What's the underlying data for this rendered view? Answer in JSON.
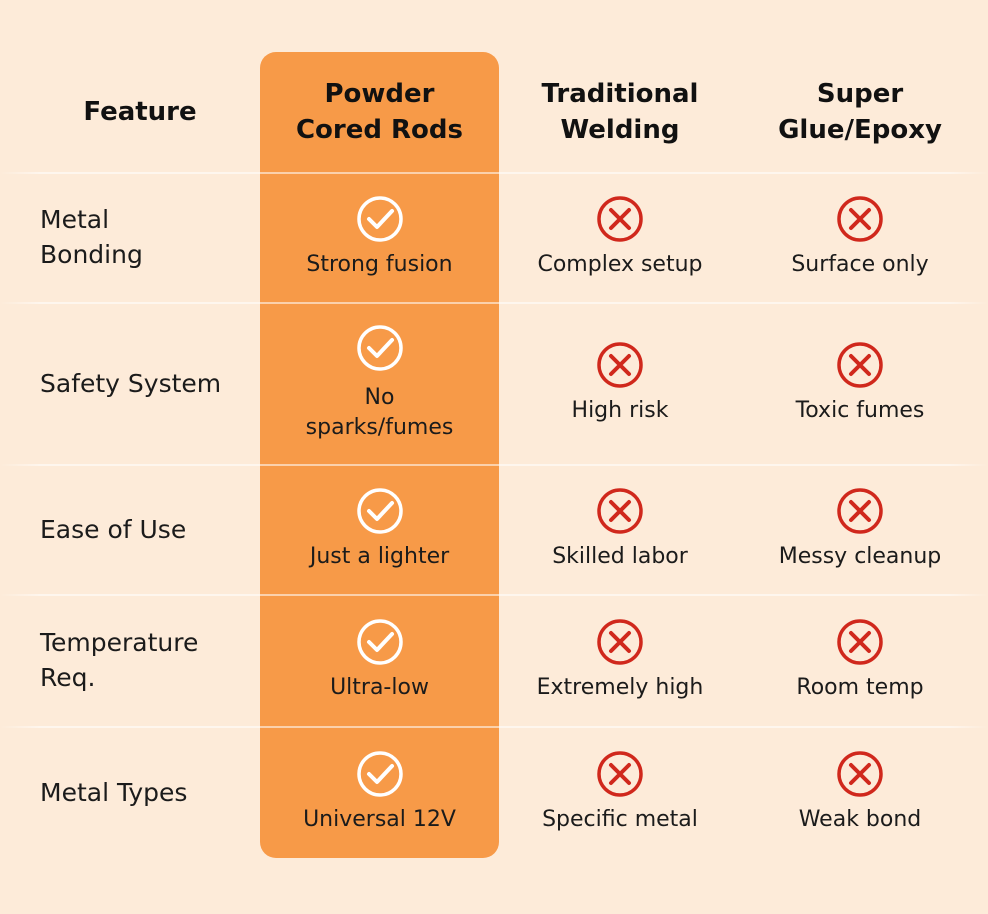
{
  "colors": {
    "background": "#fdebd9",
    "highlight": "#f79a48",
    "check": "#ffffff",
    "cross": "#d0281c"
  },
  "header": {
    "feature": "Feature",
    "col1": [
      "Powder",
      "Cored Rods"
    ],
    "col2": [
      "Traditional",
      "Welding"
    ],
    "col3": [
      "Super",
      "Glue/Epoxy"
    ]
  },
  "rows": [
    {
      "feature": [
        "Metal",
        "Bonding"
      ],
      "col1": {
        "icon": "check-circle-icon",
        "text": [
          "Strong fusion"
        ]
      },
      "col2": {
        "icon": "x-circle-icon",
        "text": [
          "Complex setup"
        ]
      },
      "col3": {
        "icon": "x-circle-icon",
        "text": [
          "Surface only"
        ]
      }
    },
    {
      "feature": [
        "Safety System"
      ],
      "col1": {
        "icon": "check-circle-icon",
        "text": [
          "No",
          "sparks/fumes"
        ]
      },
      "col2": {
        "icon": "x-circle-icon",
        "text": [
          "High risk"
        ]
      },
      "col3": {
        "icon": "x-circle-icon",
        "text": [
          "Toxic fumes"
        ]
      }
    },
    {
      "feature": [
        "Ease of Use"
      ],
      "col1": {
        "icon": "check-circle-icon",
        "text": [
          "Just a lighter"
        ]
      },
      "col2": {
        "icon": "x-circle-icon",
        "text": [
          "Skilled labor"
        ]
      },
      "col3": {
        "icon": "x-circle-icon",
        "text": [
          "Messy cleanup"
        ]
      }
    },
    {
      "feature": [
        "Temperature",
        "Req."
      ],
      "col1": {
        "icon": "check-circle-icon",
        "text": [
          "Ultra-low"
        ]
      },
      "col2": {
        "icon": "x-circle-icon",
        "text": [
          "Extremely high"
        ]
      },
      "col3": {
        "icon": "x-circle-icon",
        "text": [
          "Room temp"
        ]
      }
    },
    {
      "feature": [
        "Metal Types"
      ],
      "col1": {
        "icon": "check-circle-icon",
        "text": [
          "Universal 12V"
        ]
      },
      "col2": {
        "icon": "x-circle-icon",
        "text": [
          "Specific metal"
        ]
      },
      "col3": {
        "icon": "x-circle-icon",
        "text": [
          "Weak bond"
        ]
      }
    }
  ]
}
